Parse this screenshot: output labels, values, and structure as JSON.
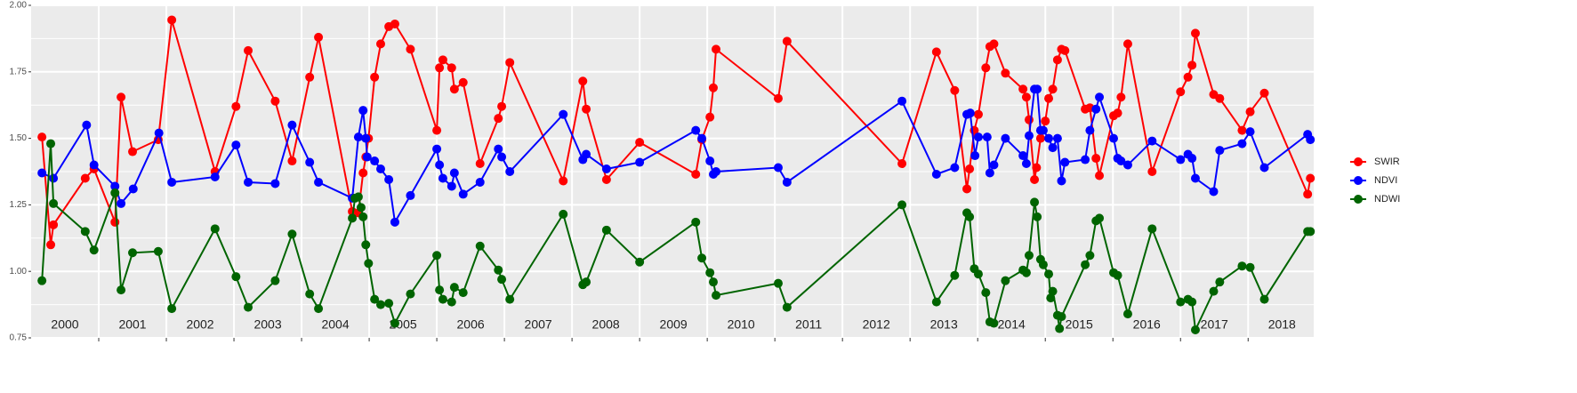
{
  "chart_data": {
    "type": "line",
    "xlim": [
      2000,
      2018.97
    ],
    "ylim": [
      0.75,
      2.0
    ],
    "xticks": [
      {
        "value": 2000.5,
        "label": "2000"
      },
      {
        "value": 2001.5,
        "label": "2001"
      },
      {
        "value": 2002.5,
        "label": "2002"
      },
      {
        "value": 2003.5,
        "label": "2003"
      },
      {
        "value": 2004.5,
        "label": "2004"
      },
      {
        "value": 2005.5,
        "label": "2005"
      },
      {
        "value": 2006.5,
        "label": "2006"
      },
      {
        "value": 2007.5,
        "label": "2007"
      },
      {
        "value": 2008.5,
        "label": "2008"
      },
      {
        "value": 2009.5,
        "label": "2009"
      },
      {
        "value": 2010.5,
        "label": "2010"
      },
      {
        "value": 2011.5,
        "label": "2011"
      },
      {
        "value": 2012.5,
        "label": "2012"
      },
      {
        "value": 2013.5,
        "label": "2013"
      },
      {
        "value": 2014.5,
        "label": "2014"
      },
      {
        "value": 2015.5,
        "label": "2015"
      },
      {
        "value": 2016.5,
        "label": "2016"
      },
      {
        "value": 2017.5,
        "label": "2017"
      },
      {
        "value": 2018.5,
        "label": "2018"
      }
    ],
    "xgrid": [
      2001,
      2002,
      2003,
      2004,
      2005,
      2006,
      2007,
      2008,
      2009,
      2010,
      2011,
      2012,
      2013,
      2014,
      2015,
      2016,
      2017,
      2018
    ],
    "yticks": [
      {
        "value": 0.75,
        "label": "0.75"
      },
      {
        "value": 1.0,
        "label": "1.00"
      },
      {
        "value": 1.25,
        "label": "1.25"
      },
      {
        "value": 1.5,
        "label": "1.50"
      },
      {
        "value": 1.75,
        "label": "1.75"
      },
      {
        "value": 2.0,
        "label": "2.00"
      }
    ],
    "yminor": [
      0.875,
      1.125,
      1.375,
      1.625,
      1.875
    ],
    "grid": true,
    "legend": "right",
    "series": [
      {
        "name": "SWIR",
        "color": "#ff0000",
        "x": [
          2000.16,
          2000.29,
          2000.33,
          2000.8,
          2000.93,
          2001.24,
          2001.33,
          2001.5,
          2001.88,
          2002.08,
          2002.72,
          2003.03,
          2003.21,
          2003.61,
          2003.86,
          2004.12,
          2004.25,
          2004.75,
          2004.84,
          2004.91,
          2004.95,
          2004.99,
          2005.08,
          2005.17,
          2005.29,
          2005.38,
          2005.61,
          2006.0,
          2006.04,
          2006.09,
          2006.22,
          2006.26,
          2006.39,
          2006.64,
          2006.91,
          2006.96,
          2007.08,
          2007.87,
          2008.16,
          2008.21,
          2008.51,
          2009.0,
          2009.83,
          2009.92,
          2010.04,
          2010.09,
          2010.13,
          2011.05,
          2011.18,
          2012.88,
          2013.39,
          2013.66,
          2013.84,
          2013.88,
          2013.95,
          2014.01,
          2014.12,
          2014.18,
          2014.24,
          2014.41,
          2014.67,
          2014.72,
          2014.76,
          2014.84,
          2014.87,
          2014.93,
          2015.0,
          2015.05,
          2015.11,
          2015.18,
          2015.24,
          2015.29,
          2015.59,
          2015.66,
          2015.75,
          2015.8,
          2016.01,
          2016.07,
          2016.12,
          2016.22,
          2016.58,
          2017.0,
          2017.11,
          2017.17,
          2017.22,
          2017.49,
          2017.58,
          2017.91,
          2018.03,
          2018.24,
          2018.88,
          2018.92
        ],
        "values": [
          1.505,
          1.1,
          1.175,
          1.35,
          1.385,
          1.185,
          1.655,
          1.45,
          1.495,
          1.945,
          1.375,
          1.62,
          1.83,
          1.64,
          1.415,
          1.73,
          1.88,
          1.225,
          1.22,
          1.37,
          1.43,
          1.5,
          1.73,
          1.855,
          1.92,
          1.93,
          1.835,
          1.53,
          1.765,
          1.795,
          1.765,
          1.685,
          1.71,
          1.405,
          1.575,
          1.62,
          1.785,
          1.34,
          1.715,
          1.61,
          1.345,
          1.485,
          1.365,
          1.495,
          1.58,
          1.69,
          1.835,
          1.65,
          1.865,
          1.405,
          1.825,
          1.68,
          1.31,
          1.385,
          1.53,
          1.59,
          1.765,
          1.845,
          1.855,
          1.745,
          1.685,
          1.655,
          1.57,
          1.345,
          1.39,
          1.5,
          1.565,
          1.65,
          1.685,
          1.795,
          1.835,
          1.83,
          1.61,
          1.615,
          1.425,
          1.36,
          1.585,
          1.595,
          1.655,
          1.855,
          1.375,
          1.675,
          1.73,
          1.775,
          1.895,
          1.665,
          1.65,
          1.53,
          1.6,
          1.67,
          1.29,
          1.35
        ]
      },
      {
        "name": "NDVI",
        "color": "#0000ff",
        "x": [
          2000.16,
          2000.33,
          2000.82,
          2000.93,
          2001.24,
          2001.33,
          2001.51,
          2001.89,
          2002.08,
          2002.72,
          2003.03,
          2003.21,
          2003.61,
          2003.86,
          2004.12,
          2004.25,
          2004.75,
          2004.84,
          2004.91,
          2004.95,
          2004.97,
          2005.08,
          2005.17,
          2005.29,
          2005.38,
          2005.61,
          2006.0,
          2006.04,
          2006.09,
          2006.22,
          2006.26,
          2006.39,
          2006.64,
          2006.91,
          2006.96,
          2007.08,
          2007.87,
          2008.16,
          2008.21,
          2008.51,
          2009.0,
          2009.83,
          2009.92,
          2010.04,
          2010.09,
          2010.13,
          2011.05,
          2011.18,
          2012.88,
          2013.39,
          2013.66,
          2013.84,
          2013.89,
          2013.96,
          2014.01,
          2014.14,
          2014.18,
          2014.24,
          2014.41,
          2014.67,
          2014.72,
          2014.76,
          2014.84,
          2014.88,
          2014.93,
          2014.97,
          2015.05,
          2015.11,
          2015.18,
          2015.24,
          2015.29,
          2015.59,
          2015.66,
          2015.75,
          2015.8,
          2016.01,
          2016.07,
          2016.12,
          2016.22,
          2016.58,
          2017.0,
          2017.11,
          2017.17,
          2017.22,
          2017.49,
          2017.58,
          2017.91,
          2018.03,
          2018.24,
          2018.88,
          2018.92
        ],
        "values": [
          1.37,
          1.35,
          1.55,
          1.4,
          1.32,
          1.255,
          1.31,
          1.52,
          1.335,
          1.355,
          1.475,
          1.335,
          1.33,
          1.55,
          1.41,
          1.335,
          1.275,
          1.505,
          1.605,
          1.5,
          1.43,
          1.415,
          1.385,
          1.345,
          1.185,
          1.285,
          1.46,
          1.4,
          1.35,
          1.32,
          1.37,
          1.29,
          1.335,
          1.46,
          1.43,
          1.375,
          1.59,
          1.42,
          1.44,
          1.385,
          1.41,
          1.53,
          1.5,
          1.415,
          1.365,
          1.375,
          1.39,
          1.335,
          1.64,
          1.365,
          1.39,
          1.59,
          1.595,
          1.435,
          1.505,
          1.505,
          1.37,
          1.4,
          1.5,
          1.435,
          1.405,
          1.51,
          1.685,
          1.685,
          1.53,
          1.53,
          1.5,
          1.465,
          1.5,
          1.34,
          1.41,
          1.42,
          1.53,
          1.61,
          1.655,
          1.5,
          1.425,
          1.415,
          1.4,
          1.49,
          1.42,
          1.44,
          1.425,
          1.35,
          1.3,
          1.455,
          1.48,
          1.525,
          1.39,
          1.515,
          1.495
        ]
      },
      {
        "name": "NDWI",
        "color": "#006400",
        "x": [
          2000.16,
          2000.29,
          2000.33,
          2000.8,
          2000.93,
          2001.24,
          2001.33,
          2001.5,
          2001.88,
          2002.08,
          2002.72,
          2003.03,
          2003.21,
          2003.61,
          2003.86,
          2004.12,
          2004.25,
          2004.75,
          2004.79,
          2004.84,
          2004.88,
          2004.91,
          2004.95,
          2004.99,
          2005.08,
          2005.17,
          2005.29,
          2005.38,
          2005.61,
          2006.0,
          2006.04,
          2006.09,
          2006.22,
          2006.26,
          2006.39,
          2006.64,
          2006.91,
          2006.96,
          2007.08,
          2007.87,
          2008.16,
          2008.21,
          2008.51,
          2009.0,
          2009.83,
          2009.92,
          2010.04,
          2010.09,
          2010.13,
          2011.05,
          2011.18,
          2012.88,
          2013.39,
          2013.66,
          2013.84,
          2013.88,
          2013.95,
          2014.01,
          2014.12,
          2014.18,
          2014.24,
          2014.41,
          2014.67,
          2014.72,
          2014.76,
          2014.84,
          2014.88,
          2014.93,
          2014.97,
          2015.05,
          2015.08,
          2015.11,
          2015.18,
          2015.21,
          2015.24,
          2015.59,
          2015.66,
          2015.75,
          2015.8,
          2016.01,
          2016.07,
          2016.22,
          2016.58,
          2017.0,
          2017.11,
          2017.17,
          2017.22,
          2017.49,
          2017.58,
          2017.91,
          2018.03,
          2018.24,
          2018.88,
          2018.92
        ],
        "values": [
          0.965,
          1.48,
          1.255,
          1.15,
          1.08,
          1.295,
          0.93,
          1.07,
          1.075,
          0.86,
          1.16,
          0.98,
          0.865,
          0.965,
          1.14,
          0.915,
          0.86,
          1.2,
          1.275,
          1.28,
          1.24,
          1.205,
          1.1,
          1.03,
          0.895,
          0.875,
          0.88,
          0.805,
          0.915,
          1.06,
          0.93,
          0.895,
          0.885,
          0.94,
          0.92,
          1.095,
          1.005,
          0.97,
          0.895,
          1.215,
          0.95,
          0.96,
          1.155,
          1.035,
          1.185,
          1.05,
          0.995,
          0.96,
          0.91,
          0.955,
          0.865,
          1.25,
          0.885,
          0.985,
          1.22,
          1.205,
          1.01,
          0.99,
          0.92,
          0.81,
          0.805,
          0.965,
          1.005,
          0.995,
          1.06,
          1.26,
          1.205,
          1.045,
          1.025,
          0.99,
          0.9,
          0.925,
          0.835,
          0.785,
          0.83,
          1.025,
          1.06,
          1.19,
          1.2,
          0.995,
          0.985,
          0.84,
          1.16,
          0.885,
          0.895,
          0.885,
          0.78,
          0.925,
          0.96,
          1.02,
          1.015,
          0.895,
          1.15,
          1.15
        ]
      }
    ]
  }
}
